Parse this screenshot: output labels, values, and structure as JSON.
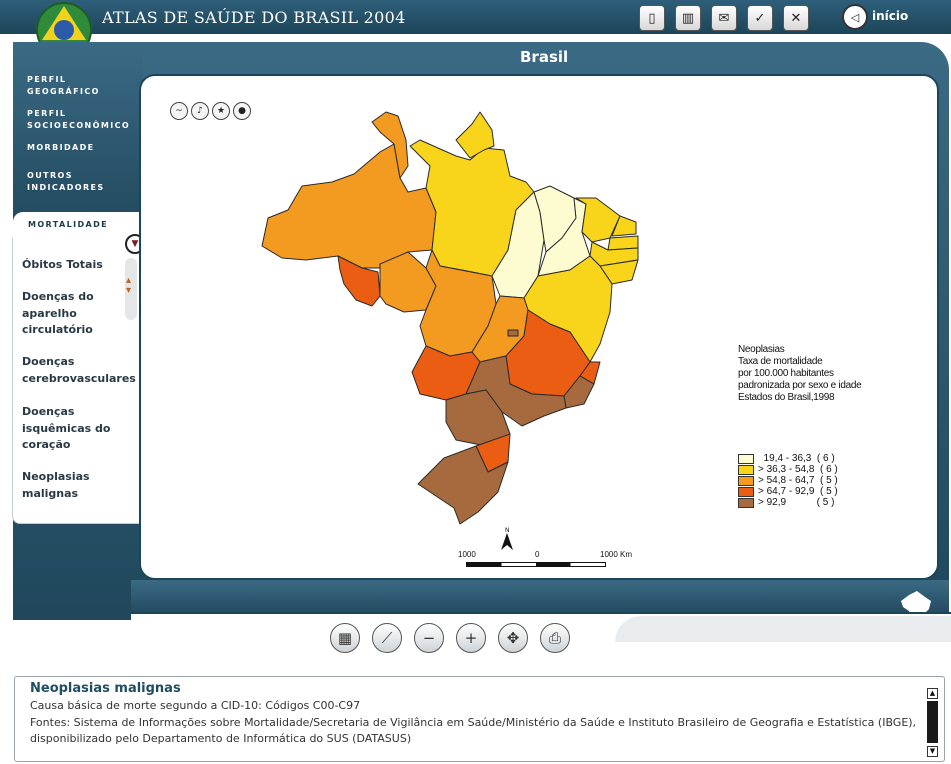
{
  "header": {
    "title": "ATLAS DE SAÚDE DO BRASIL 2004",
    "home_label": "início",
    "toolbar_icons": [
      "door-exit-icon",
      "book-icon",
      "mail-icon",
      "checklist-icon",
      "close-icon"
    ]
  },
  "region_title": "Brasil",
  "side_nav": {
    "items": [
      {
        "label_1": "PERFIL",
        "label_2": "GEOGRÁFICO"
      },
      {
        "label_1": "PERFIL",
        "label_2": "SOCIOECONÔMICO"
      },
      {
        "label_1": "MORBIDADE"
      },
      {
        "label_1": "OUTROS",
        "label_2": "INDICADORES"
      }
    ],
    "active": "MORTALIDADE",
    "submenu": [
      {
        "line_1": "Óbitos Totais"
      },
      {
        "line_1": "Doenças do",
        "line_2": "aparelho",
        "line_3": "circulatório"
      },
      {
        "line_1": "Doenças",
        "line_2": "cerebrovasculares"
      },
      {
        "line_1": "Doenças",
        "line_2": "isquêmicas do",
        "line_3": "coração"
      },
      {
        "line_1": "Neoplasias",
        "line_2": "malignas"
      }
    ]
  },
  "map": {
    "legend_title": [
      "Neoplasias",
      "Taxa de mortalidade",
      "por 100.000 habitantes",
      "padronizada por sexo e idade",
      "Estados do Brasil,1998"
    ],
    "legend": [
      {
        "label": "  19,4 - 36,3  ( 6 )",
        "color": "#fdfbd0"
      },
      {
        "label": "> 36,3 - 54,8  ( 6 )",
        "color": "#f8d41a"
      },
      {
        "label": "> 54,8 - 64,7  ( 5 )",
        "color": "#f39a20"
      },
      {
        "label": "> 64,7 - 92,9  ( 5 )",
        "color": "#ea5d12"
      },
      {
        "label": "> 92,9           ( 5 )",
        "color": "#a76a3f"
      }
    ],
    "scale": {
      "left": "1000",
      "mid": "0",
      "right": "1000 Km"
    },
    "north": "N"
  },
  "info": {
    "title": "Neoplasias malignas",
    "line_1": "Causa básica de morte segundo a CID-10: Códigos C00-C97",
    "line_2": "Fontes: Sistema de Informações sobre Mortalidade/Secretaria de Vigilância em Saúde/Ministério da Saúde e Instituto Brasileiro de Geografia e Estatística (IBGE),",
    "line_3": "disponibilizado pelo Departamento de Informática do SUS (DATASUS)"
  }
}
